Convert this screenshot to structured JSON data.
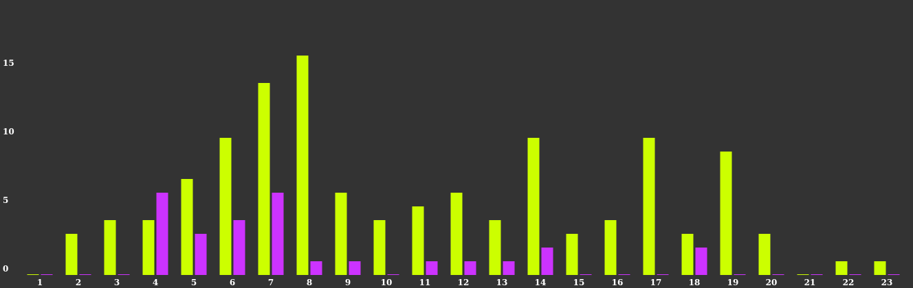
{
  "chart_data": {
    "type": "bar",
    "categories": [
      "1",
      "2",
      "3",
      "4",
      "5",
      "6",
      "7",
      "8",
      "9",
      "10",
      "11",
      "12",
      "13",
      "14",
      "15",
      "16",
      "17",
      "18",
      "19",
      "20",
      "21",
      "22",
      "23"
    ],
    "series": [
      {
        "color": "#ccff00",
        "values": [
          0,
          3,
          4,
          4,
          7,
          10,
          14,
          16,
          6,
          4,
          5,
          6,
          4,
          10,
          3,
          4,
          10,
          3,
          9,
          3,
          0,
          1,
          1
        ]
      },
      {
        "color": "#cc33ff",
        "values": [
          0,
          0,
          0,
          6,
          3,
          4,
          6,
          1,
          1,
          0,
          1,
          1,
          1,
          2,
          0,
          0,
          0,
          2,
          0,
          0,
          0,
          0,
          0
        ]
      }
    ],
    "yticks": [
      "0",
      "5",
      "10",
      "15"
    ],
    "ylim": [
      0,
      20
    ],
    "grid": false,
    "legend": "none",
    "title": "",
    "xlabel": "",
    "ylabel": ""
  }
}
